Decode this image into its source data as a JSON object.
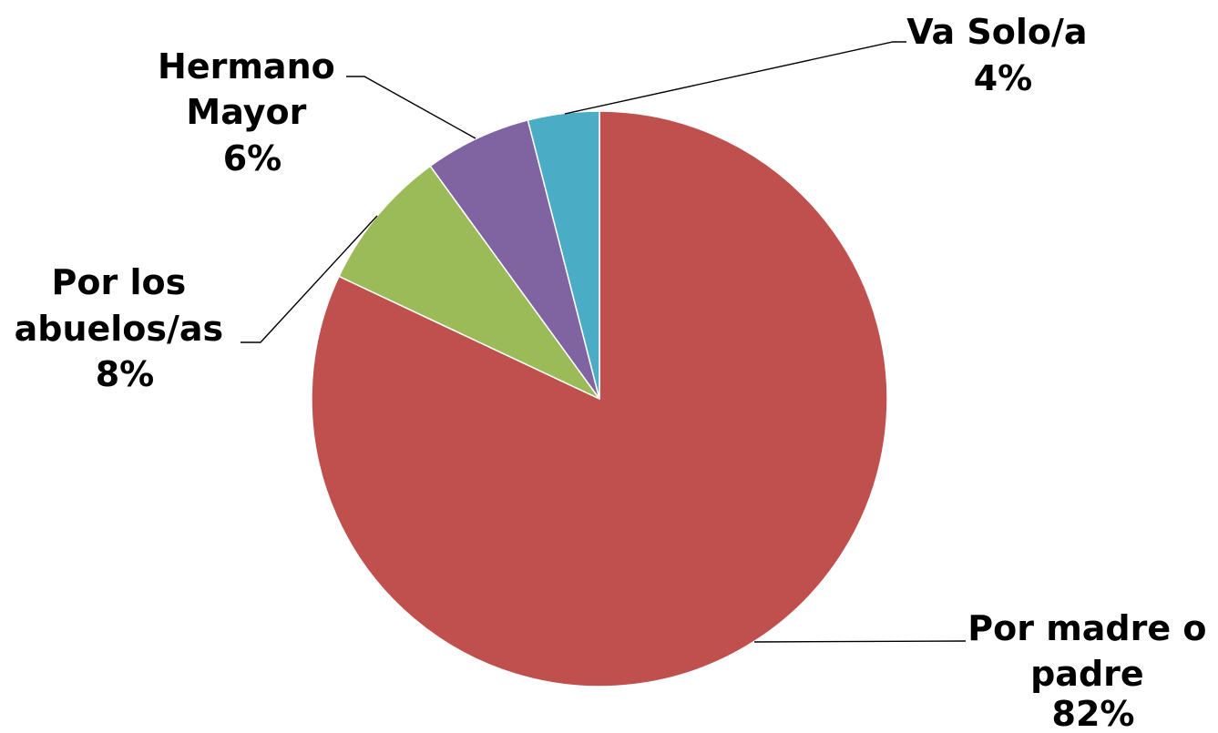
{
  "chart_data": {
    "type": "pie",
    "title": "",
    "start_angle_deg": 0,
    "direction": "clockwise",
    "slices": [
      {
        "label_lines": [
          "Por madre o",
          "padre"
        ],
        "pct_label": "82%",
        "value": 82,
        "color": "#C0504D"
      },
      {
        "label_lines": [
          "Por los",
          "abuelos/as"
        ],
        "pct_label": "8%",
        "value": 8,
        "color": "#9BBB59"
      },
      {
        "label_lines": [
          "Hermano",
          "Mayor"
        ],
        "pct_label": "6%",
        "value": 6,
        "color": "#8064A2"
      },
      {
        "label_lines": [
          "Va Solo/a"
        ],
        "pct_label": "4%",
        "value": 4,
        "color": "#4BACC6"
      }
    ]
  }
}
